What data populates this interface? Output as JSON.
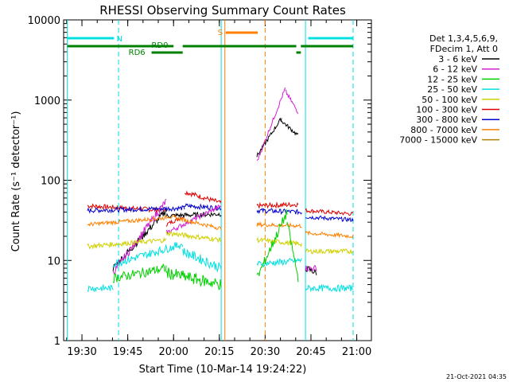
{
  "chart_data": {
    "type": "line",
    "title": "RHESSI Observing Summary Count Rates",
    "xlabel": "Start Time (10-Mar-14 19:24:22)",
    "ylabel": "Count Rate (s⁻¹ detector⁻¹)",
    "y_scale": "log",
    "ylim": [
      1,
      10000
    ],
    "xlim_minutes": [
      19.4,
      21.08
    ],
    "x_ticks": [
      "19:30",
      "19:45",
      "20:00",
      "20:15",
      "20:30",
      "20:45",
      "21:00"
    ],
    "y_ticks": [
      "1",
      "10",
      "100",
      "1000",
      "10000"
    ],
    "footer": "21-Oct-2021 04:35",
    "legend_header": [
      "Det 1,3,4,5,6,9,",
      "FDecim 1, Att 0"
    ],
    "series": [
      {
        "name": "3 - 6 keV",
        "color": "#000000"
      },
      {
        "name": "6 - 12 keV",
        "color": "#d020d0"
      },
      {
        "name": "12 - 25 keV",
        "color": "#00d000"
      },
      {
        "name": "25 - 50 keV",
        "color": "#00e0e0"
      },
      {
        "name": "50 - 100 keV",
        "color": "#d0d000"
      },
      {
        "name": "100 - 300 keV",
        "color": "#e00000"
      },
      {
        "name": "300 - 800 keV",
        "color": "#0000d0"
      },
      {
        "name": "800 - 7000 keV",
        "color": "#ff8000"
      },
      {
        "name": "7000 - 15000 keV",
        "color": "#b08000"
      }
    ],
    "annotations": {
      "night_label": "N",
      "saa_label": "S",
      "rd0_label": "RD0",
      "rd6_label": "RD6"
    }
  }
}
